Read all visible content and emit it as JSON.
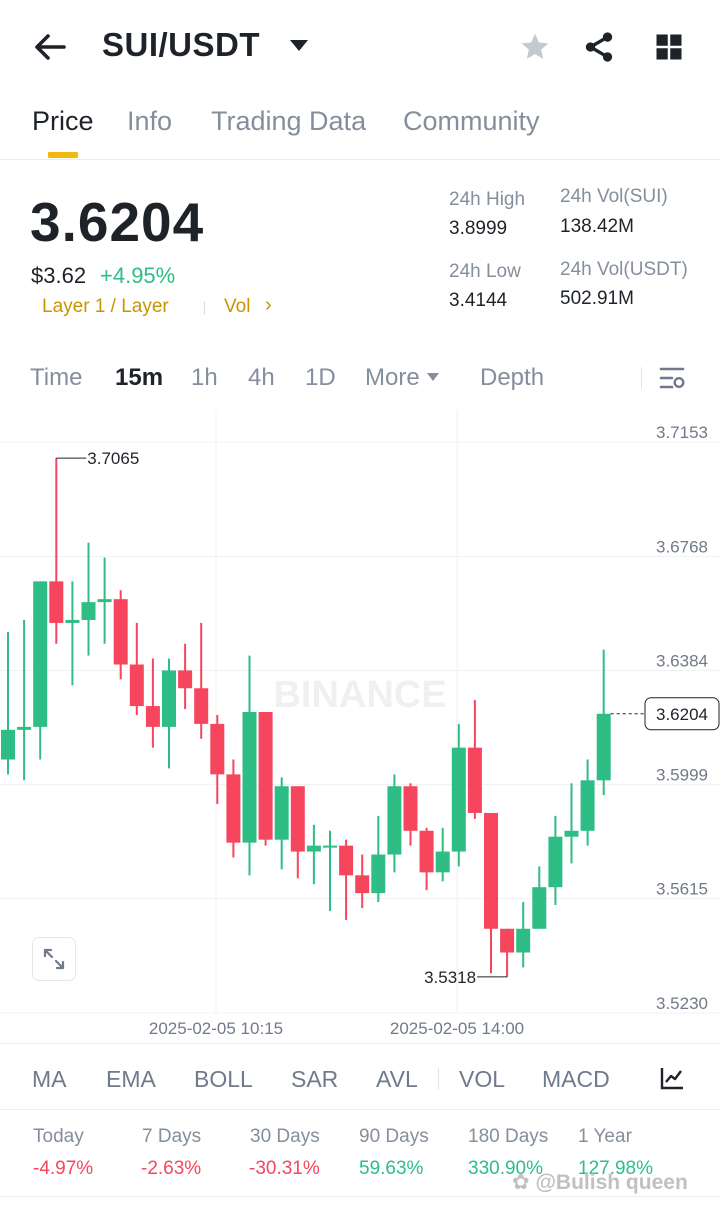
{
  "header": {
    "pair": "SUI/USDT"
  },
  "tabs": [
    {
      "label": "Price",
      "active": true
    },
    {
      "label": "Info",
      "active": false
    },
    {
      "label": "Trading Data",
      "active": false
    },
    {
      "label": "Community",
      "active": false
    }
  ],
  "price": {
    "last": "3.6204",
    "usd": "$3.62",
    "change": "+4.95%",
    "tag": "Layer 1 / Layer",
    "vol_link": "Vol",
    "stats": {
      "high_label": "24h High",
      "high_value": "3.8999",
      "low_label": "24h Low",
      "low_value": "3.4144",
      "vol_base_label": "24h Vol(SUI)",
      "vol_base_value": "138.42M",
      "vol_quote_label": "24h Vol(USDT)",
      "vol_quote_value": "502.91M"
    }
  },
  "timeframes": {
    "time": "Time",
    "m15": "15m",
    "h1": "1h",
    "h4": "4h",
    "d1": "1D",
    "more": "More",
    "depth": "Depth",
    "active": "15m"
  },
  "chart_data": {
    "type": "candlestick",
    "interval": "15m",
    "watermark": "BINANCE",
    "y_ticks": [
      "3.7153",
      "3.6768",
      "3.6384",
      "3.5999",
      "3.5615",
      "3.5230"
    ],
    "ylim": [
      3.523,
      3.7153
    ],
    "x_ticks": [
      "2025-02-05 10:15",
      "2025-02-05 14:00"
    ],
    "high_marker": "3.7065",
    "low_marker": "3.5318",
    "last_price": "3.6204",
    "colors": {
      "up": "#2ebd85",
      "down": "#f6465d"
    },
    "candles": [
      {
        "o": 3.605,
        "h": 3.648,
        "l": 3.6,
        "c": 3.615
      },
      {
        "o": 3.615,
        "h": 3.652,
        "l": 3.598,
        "c": 3.616
      },
      {
        "o": 3.616,
        "h": 3.665,
        "l": 3.605,
        "c": 3.665
      },
      {
        "o": 3.665,
        "h": 3.7065,
        "l": 3.644,
        "c": 3.651
      },
      {
        "o": 3.651,
        "h": 3.665,
        "l": 3.63,
        "c": 3.652
      },
      {
        "o": 3.652,
        "h": 3.678,
        "l": 3.64,
        "c": 3.658
      },
      {
        "o": 3.658,
        "h": 3.673,
        "l": 3.644,
        "c": 3.659
      },
      {
        "o": 3.659,
        "h": 3.662,
        "l": 3.632,
        "c": 3.637
      },
      {
        "o": 3.637,
        "h": 3.651,
        "l": 3.62,
        "c": 3.623
      },
      {
        "o": 3.623,
        "h": 3.639,
        "l": 3.609,
        "c": 3.616
      },
      {
        "o": 3.616,
        "h": 3.639,
        "l": 3.602,
        "c": 3.635
      },
      {
        "o": 3.635,
        "h": 3.644,
        "l": 3.622,
        "c": 3.629
      },
      {
        "o": 3.629,
        "h": 3.651,
        "l": 3.612,
        "c": 3.617
      },
      {
        "o": 3.617,
        "h": 3.62,
        "l": 3.59,
        "c": 3.6
      },
      {
        "o": 3.6,
        "h": 3.605,
        "l": 3.572,
        "c": 3.577
      },
      {
        "o": 3.577,
        "h": 3.64,
        "l": 3.566,
        "c": 3.621
      },
      {
        "o": 3.621,
        "h": 3.621,
        "l": 3.576,
        "c": 3.578
      },
      {
        "o": 3.578,
        "h": 3.599,
        "l": 3.568,
        "c": 3.596
      },
      {
        "o": 3.596,
        "h": 3.596,
        "l": 3.565,
        "c": 3.574
      },
      {
        "o": 3.574,
        "h": 3.583,
        "l": 3.563,
        "c": 3.576
      },
      {
        "o": 3.576,
        "h": 3.581,
        "l": 3.554,
        "c": 3.576
      },
      {
        "o": 3.576,
        "h": 3.578,
        "l": 3.551,
        "c": 3.566
      },
      {
        "o": 3.566,
        "h": 3.573,
        "l": 3.555,
        "c": 3.56
      },
      {
        "o": 3.56,
        "h": 3.586,
        "l": 3.557,
        "c": 3.573
      },
      {
        "o": 3.573,
        "h": 3.6,
        "l": 3.567,
        "c": 3.596
      },
      {
        "o": 3.596,
        "h": 3.597,
        "l": 3.576,
        "c": 3.581
      },
      {
        "o": 3.581,
        "h": 3.582,
        "l": 3.561,
        "c": 3.567
      },
      {
        "o": 3.567,
        "h": 3.582,
        "l": 3.564,
        "c": 3.574
      },
      {
        "o": 3.574,
        "h": 3.617,
        "l": 3.569,
        "c": 3.609
      },
      {
        "o": 3.609,
        "h": 3.625,
        "l": 3.585,
        "c": 3.587
      },
      {
        "o": 3.587,
        "h": 3.587,
        "l": 3.533,
        "c": 3.548
      },
      {
        "o": 3.548,
        "h": 3.548,
        "l": 3.5318,
        "c": 3.54
      },
      {
        "o": 3.54,
        "h": 3.557,
        "l": 3.535,
        "c": 3.548
      },
      {
        "o": 3.548,
        "h": 3.569,
        "l": 3.548,
        "c": 3.562
      },
      {
        "o": 3.562,
        "h": 3.586,
        "l": 3.556,
        "c": 3.579
      },
      {
        "o": 3.579,
        "h": 3.597,
        "l": 3.57,
        "c": 3.581
      },
      {
        "o": 3.581,
        "h": 3.605,
        "l": 3.576,
        "c": 3.598
      },
      {
        "o": 3.598,
        "h": 3.642,
        "l": 3.593,
        "c": 3.6204
      }
    ]
  },
  "indicators": [
    "MA",
    "EMA",
    "BOLL",
    "SAR",
    "AVL",
    "VOL",
    "MACD"
  ],
  "performance": [
    {
      "label": "Today",
      "value": "-4.97%",
      "dir": "down"
    },
    {
      "label": "7 Days",
      "value": "-2.63%",
      "dir": "down"
    },
    {
      "label": "30 Days",
      "value": "-30.31%",
      "dir": "down"
    },
    {
      "label": "90 Days",
      "value": "59.63%",
      "dir": "up"
    },
    {
      "label": "180 Days",
      "value": "330.90%",
      "dir": "up"
    },
    {
      "label": "1 Year",
      "value": "127.98%",
      "dir": "up"
    }
  ],
  "watermark_credit": "@Bulish queen",
  "icons": {
    "back": "arrow-left-icon",
    "favorite": "star-icon",
    "share": "share-icon",
    "menu": "grid-icon",
    "chart_settings": "chart-settings-icon",
    "expand": "expand-icon",
    "indicator_settings": "indicator-chart-icon"
  }
}
